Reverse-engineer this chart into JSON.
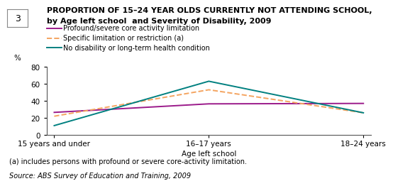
{
  "title_line1": "PROPORTION OF 15–24 YEAR OLDS CURRENTLY NOT ATTENDING SCHOOL,",
  "title_line2": "by Age left school  and Severity of Disability, 2009",
  "x_labels": [
    "15 years and under",
    "16–17 years",
    "18–24 years"
  ],
  "x_positions": [
    0,
    1,
    2
  ],
  "series": [
    {
      "label": "Profound/severe core activity limitation",
      "color": "#9b1a8a",
      "linestyle": "solid",
      "linewidth": 1.4,
      "values": [
        26.5,
        36.5,
        37.0
      ]
    },
    {
      "label": "Specific limitation or restriction (a)",
      "color": "#f4a460",
      "linestyle": "dashed",
      "linewidth": 1.4,
      "values": [
        22.0,
        53.0,
        26.0
      ]
    },
    {
      "label": "No disability or long-term health condition",
      "color": "#008080",
      "linestyle": "solid",
      "linewidth": 1.4,
      "values": [
        11.0,
        63.0,
        26.0
      ]
    }
  ],
  "ylabel": "%",
  "xlabel": "Age left school",
  "ylim": [
    0,
    80
  ],
  "yticks": [
    0,
    20,
    40,
    60,
    80
  ],
  "footnote1": "(a) includes persons with profound or severe core-activity limitation.",
  "footnote2": "Source: ABS Survey of Education and Training, 2009",
  "box_number": "3",
  "background_color": "#ffffff",
  "legend_fontsize": 7.0,
  "title_fontsize": 8.0,
  "axis_fontsize": 7.5,
  "tick_fontsize": 7.5,
  "footnote_fontsize": 7.0
}
